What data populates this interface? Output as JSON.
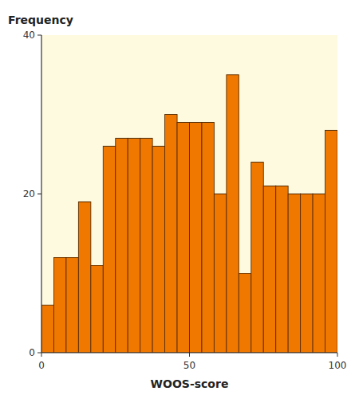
{
  "chart_data": {
    "type": "histogram",
    "xlabel": "WOOS-score",
    "ylabel": "Frequency",
    "bins": [
      0,
      4.166666666666667,
      8.333333333333334,
      12.5,
      16.666666666666668,
      20.833333333333336,
      25,
      29.166666666666668,
      33.333333333333336,
      37.5,
      41.66666666666667,
      45.833333333333336,
      50,
      54.16666666666667,
      58.333333333333336,
      62.5,
      66.66666666666667,
      70.83333333333334,
      75,
      79.16666666666667,
      83.33333333333334,
      87.5,
      91.66666666666667,
      95.83333333333334,
      100
    ],
    "values": [
      6,
      12,
      12,
      19,
      11,
      26,
      27,
      27,
      27,
      26,
      30,
      29,
      29,
      29,
      20,
      35,
      10,
      24,
      21,
      21,
      20,
      20,
      20,
      28
    ],
    "color": "#F07800",
    "xlim": [
      0,
      100
    ],
    "ylim": [
      0,
      40
    ],
    "xticks": [
      0,
      50,
      100
    ],
    "yticks": [
      0,
      20,
      40
    ],
    "grid": false
  }
}
